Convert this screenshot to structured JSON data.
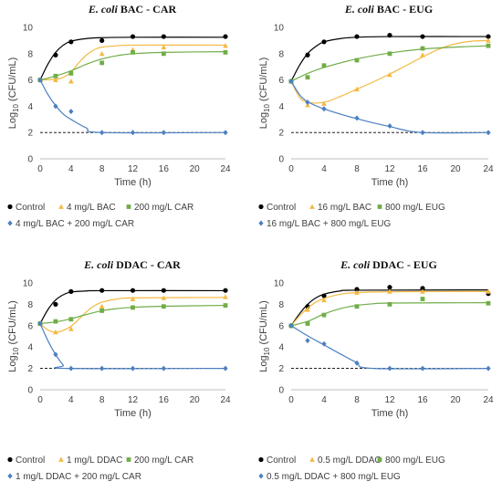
{
  "chart_data": [
    {
      "type": "line",
      "title_italic": "E. coli",
      "title_rest": " BAC - CAR",
      "xlabel": "Time (h)",
      "ylabel_prefix": "Log",
      "ylabel_sub": "10",
      "ylabel_suffix": " (CFU/mL)",
      "xlim": [
        0,
        24
      ],
      "ylim": [
        0,
        10
      ],
      "xticks": [
        0,
        4,
        8,
        12,
        16,
        20,
        24
      ],
      "yticks": [
        0,
        2,
        4,
        6,
        8,
        10
      ],
      "detection_limit": 2,
      "grid": false,
      "legend_position": "bottom",
      "series": [
        {
          "name": "Control",
          "color": "#000000",
          "marker": "circle",
          "x": [
            0,
            2,
            4,
            8,
            12,
            16,
            24
          ],
          "y": [
            6.0,
            7.9,
            8.9,
            9.0,
            9.3,
            9.3,
            9.3
          ],
          "fit": [
            [
              0,
              6.0
            ],
            [
              1,
              7.2
            ],
            [
              2,
              8.1
            ],
            [
              3,
              8.65
            ],
            [
              4,
              8.95
            ],
            [
              6,
              9.15
            ],
            [
              8,
              9.22
            ],
            [
              12,
              9.25
            ],
            [
              24,
              9.25
            ]
          ]
        },
        {
          "name": "4 mg/L BAC",
          "color": "#f4b942",
          "marker": "triangle",
          "x": [
            0,
            2,
            4,
            8,
            12,
            16,
            24
          ],
          "y": [
            6.0,
            6.0,
            5.9,
            8.0,
            8.3,
            8.5,
            8.6
          ],
          "fit": [
            [
              0,
              6.0
            ],
            [
              2,
              6.05
            ],
            [
              3,
              6.2
            ],
            [
              4,
              6.6
            ],
            [
              5,
              7.3
            ],
            [
              6,
              7.9
            ],
            [
              7,
              8.3
            ],
            [
              8,
              8.5
            ],
            [
              10,
              8.6
            ],
            [
              12,
              8.65
            ],
            [
              24,
              8.65
            ]
          ]
        },
        {
          "name": "200 mg/L CAR",
          "color": "#70ad47",
          "marker": "square",
          "x": [
            0,
            2,
            4,
            8,
            12,
            16,
            24
          ],
          "y": [
            6.0,
            6.3,
            6.5,
            7.3,
            8.1,
            8.0,
            8.1
          ],
          "fit": [
            [
              0,
              6.0
            ],
            [
              2,
              6.3
            ],
            [
              4,
              6.7
            ],
            [
              6,
              7.2
            ],
            [
              8,
              7.6
            ],
            [
              10,
              7.85
            ],
            [
              12,
              8.0
            ],
            [
              16,
              8.1
            ],
            [
              24,
              8.15
            ]
          ]
        },
        {
          "name": "4 mg/L BAC + 200 mg/L CAR",
          "color": "#4a7fc1",
          "marker": "diamond",
          "x": [
            0,
            2,
            4,
            8,
            12,
            16,
            24
          ],
          "y": [
            6.0,
            4.0,
            3.6,
            2.0,
            2.0,
            2.0,
            2.0
          ],
          "fit": [
            [
              0,
              6.0
            ],
            [
              1,
              4.9
            ],
            [
              2,
              4.05
            ],
            [
              3,
              3.4
            ],
            [
              4,
              3.0
            ],
            [
              6,
              2.35
            ],
            [
              8,
              2.0
            ],
            [
              24,
              2.0
            ]
          ]
        }
      ]
    },
    {
      "type": "line",
      "title_italic": "E. coli",
      "title_rest": " BAC - EUG",
      "xlabel": "Time (h)",
      "ylabel_prefix": "Log",
      "ylabel_sub": "10",
      "ylabel_suffix": " (CFU/mL)",
      "xlim": [
        0,
        24
      ],
      "ylim": [
        0,
        10
      ],
      "xticks": [
        0,
        4,
        8,
        12,
        16,
        20,
        24
      ],
      "yticks": [
        0,
        2,
        4,
        6,
        8,
        10
      ],
      "detection_limit": 2,
      "grid": false,
      "legend_position": "bottom",
      "series": [
        {
          "name": "Control",
          "color": "#000000",
          "marker": "circle",
          "x": [
            0,
            2,
            4,
            8,
            12,
            16,
            24
          ],
          "y": [
            5.9,
            7.9,
            8.9,
            9.3,
            9.4,
            9.3,
            9.3
          ],
          "fit": [
            [
              0,
              5.9
            ],
            [
              1,
              7.1
            ],
            [
              2,
              8.0
            ],
            [
              3,
              8.55
            ],
            [
              4,
              8.9
            ],
            [
              6,
              9.15
            ],
            [
              8,
              9.25
            ],
            [
              12,
              9.3
            ],
            [
              24,
              9.3
            ]
          ]
        },
        {
          "name": "16 mg/L BAC",
          "color": "#f4b942",
          "marker": "triangle",
          "x": [
            0,
            2,
            4,
            8,
            12,
            16,
            24
          ],
          "y": [
            5.9,
            4.1,
            4.2,
            5.3,
            6.4,
            7.9,
            9.0
          ],
          "fit": [
            [
              0,
              5.9
            ],
            [
              1,
              4.7
            ],
            [
              2,
              4.3
            ],
            [
              4,
              4.3
            ],
            [
              6,
              4.75
            ],
            [
              8,
              5.3
            ],
            [
              10,
              5.85
            ],
            [
              12,
              6.45
            ],
            [
              14,
              7.1
            ],
            [
              16,
              7.75
            ],
            [
              18,
              8.35
            ],
            [
              20,
              8.75
            ],
            [
              22,
              8.95
            ],
            [
              24,
              9.0
            ]
          ]
        },
        {
          "name": "800 mg/L EUG",
          "color": "#70ad47",
          "marker": "square",
          "x": [
            0,
            2,
            4,
            8,
            12,
            16,
            24
          ],
          "y": [
            5.9,
            6.2,
            7.1,
            7.5,
            8.0,
            8.4,
            8.6
          ],
          "fit": [
            [
              0,
              5.9
            ],
            [
              2,
              6.5
            ],
            [
              4,
              6.95
            ],
            [
              8,
              7.6
            ],
            [
              12,
              8.05
            ],
            [
              16,
              8.35
            ],
            [
              20,
              8.5
            ],
            [
              24,
              8.6
            ]
          ]
        },
        {
          "name": "16 mg/L BAC + 800 mg/L EUG",
          "color": "#4a7fc1",
          "marker": "diamond",
          "x": [
            0,
            2,
            4,
            8,
            12,
            16,
            24
          ],
          "y": [
            5.9,
            4.3,
            3.8,
            3.1,
            2.5,
            2.0,
            2.0
          ],
          "fit": [
            [
              0,
              5.9
            ],
            [
              1,
              4.9
            ],
            [
              2,
              4.35
            ],
            [
              4,
              3.8
            ],
            [
              8,
              3.05
            ],
            [
              12,
              2.45
            ],
            [
              16,
              2.0
            ],
            [
              24,
              2.0
            ]
          ]
        }
      ]
    },
    {
      "type": "line",
      "title_italic": "E. coli",
      "title_rest": " DDAC - CAR",
      "xlabel": "Time (h)",
      "ylabel_prefix": "Log",
      "ylabel_sub": "10",
      "ylabel_suffix": " (CFU/mL)",
      "xlim": [
        0,
        24
      ],
      "ylim": [
        0,
        10
      ],
      "xticks": [
        0,
        4,
        8,
        12,
        16,
        20,
        24
      ],
      "yticks": [
        0,
        2,
        4,
        6,
        8,
        10
      ],
      "detection_limit": 2,
      "grid": false,
      "legend_position": "bottom",
      "series": [
        {
          "name": "Control",
          "color": "#000000",
          "marker": "circle",
          "x": [
            0,
            2,
            4,
            8,
            12,
            16,
            24
          ],
          "y": [
            6.2,
            8.0,
            9.2,
            9.3,
            9.3,
            9.3,
            9.3
          ],
          "fit": [
            [
              0,
              6.2
            ],
            [
              1,
              7.5
            ],
            [
              2,
              8.4
            ],
            [
              3,
              8.9
            ],
            [
              4,
              9.15
            ],
            [
              6,
              9.25
            ],
            [
              8,
              9.28
            ],
            [
              24,
              9.28
            ]
          ]
        },
        {
          "name": "1 mg/L DDAC",
          "color": "#f4b942",
          "marker": "triangle",
          "x": [
            0,
            2,
            4,
            8,
            12,
            16,
            24
          ],
          "y": [
            6.2,
            5.4,
            5.7,
            7.8,
            8.5,
            8.6,
            8.7
          ],
          "fit": [
            [
              0,
              6.2
            ],
            [
              1,
              5.6
            ],
            [
              2,
              5.4
            ],
            [
              3,
              5.55
            ],
            [
              4,
              5.95
            ],
            [
              5,
              6.6
            ],
            [
              6,
              7.3
            ],
            [
              7,
              7.85
            ],
            [
              8,
              8.2
            ],
            [
              10,
              8.5
            ],
            [
              12,
              8.6
            ],
            [
              24,
              8.65
            ]
          ]
        },
        {
          "name": "200 mg/L CAR",
          "color": "#70ad47",
          "marker": "square",
          "x": [
            0,
            2,
            4,
            8,
            12,
            16,
            24
          ],
          "y": [
            6.2,
            6.4,
            6.6,
            7.4,
            7.7,
            7.8,
            7.9
          ],
          "fit": [
            [
              0,
              6.2
            ],
            [
              2,
              6.35
            ],
            [
              4,
              6.65
            ],
            [
              6,
              7.05
            ],
            [
              8,
              7.4
            ],
            [
              10,
              7.6
            ],
            [
              12,
              7.72
            ],
            [
              16,
              7.82
            ],
            [
              24,
              7.9
            ]
          ]
        },
        {
          "name": "1 mg/L DDAC + 200 mg/L CAR",
          "color": "#4a7fc1",
          "marker": "diamond",
          "x": [
            0,
            2,
            4,
            8,
            12,
            16,
            24
          ],
          "y": [
            6.2,
            3.3,
            2.0,
            2.0,
            2.0,
            2.0,
            2.0
          ],
          "fit": [
            [
              0,
              6.2
            ],
            [
              1,
              4.6
            ],
            [
              2,
              3.3
            ],
            [
              3,
              2.3
            ],
            [
              3.5,
              2.0
            ],
            [
              24,
              2.0
            ]
          ]
        }
      ]
    },
    {
      "type": "line",
      "title_italic": "E. coli",
      "title_rest": " DDAC - EUG",
      "xlabel": "Time (h)",
      "ylabel_prefix": "Log",
      "ylabel_sub": "10",
      "ylabel_suffix": " (CFU/mL)",
      "xlim": [
        0,
        24
      ],
      "ylim": [
        0,
        10
      ],
      "xticks": [
        0,
        4,
        8,
        12,
        16,
        20,
        24
      ],
      "yticks": [
        0,
        2,
        4,
        6,
        8,
        10
      ],
      "detection_limit": 2,
      "grid": false,
      "legend_position": "bottom",
      "series": [
        {
          "name": "Control",
          "color": "#000000",
          "marker": "circle",
          "x": [
            0,
            2,
            4,
            8,
            12,
            16,
            24
          ],
          "y": [
            6.0,
            7.8,
            8.8,
            9.4,
            9.6,
            9.5,
            9.0
          ],
          "fit": [
            [
              0,
              6.0
            ],
            [
              1,
              7.1
            ],
            [
              2,
              8.0
            ],
            [
              3,
              8.6
            ],
            [
              4,
              8.95
            ],
            [
              6,
              9.25
            ],
            [
              8,
              9.32
            ],
            [
              24,
              9.35
            ]
          ]
        },
        {
          "name": "0.5 mg/L DDAC",
          "color": "#f4b942",
          "marker": "triangle",
          "x": [
            0,
            2,
            4,
            8,
            12,
            16,
            24
          ],
          "y": [
            6.0,
            7.5,
            8.4,
            9.1,
            9.2,
            9.2,
            9.2
          ],
          "fit": [
            [
              0,
              6.0
            ],
            [
              1,
              6.9
            ],
            [
              2,
              7.65
            ],
            [
              3,
              8.2
            ],
            [
              4,
              8.55
            ],
            [
              6,
              8.95
            ],
            [
              8,
              9.1
            ],
            [
              12,
              9.18
            ],
            [
              24,
              9.2
            ]
          ]
        },
        {
          "name": "800 mg/L EUG",
          "color": "#70ad47",
          "marker": "square",
          "x": [
            0,
            2,
            4,
            8,
            12,
            16,
            24
          ],
          "y": [
            6.0,
            6.2,
            7.0,
            7.8,
            8.0,
            8.5,
            8.1
          ],
          "fit": [
            [
              0,
              6.0
            ],
            [
              2,
              6.4
            ],
            [
              4,
              7.1
            ],
            [
              6,
              7.6
            ],
            [
              8,
              7.9
            ],
            [
              10,
              8.05
            ],
            [
              12,
              8.12
            ],
            [
              24,
              8.15
            ]
          ]
        },
        {
          "name": "0.5 mg/L DDAC + 800 mg/L EUG",
          "color": "#4a7fc1",
          "marker": "diamond",
          "x": [
            0,
            2,
            4,
            8,
            12,
            16,
            24
          ],
          "y": [
            6.0,
            4.6,
            4.3,
            2.5,
            2.0,
            2.0,
            2.0
          ],
          "fit": [
            [
              0,
              6.0
            ],
            [
              2,
              5.05
            ],
            [
              4,
              4.2
            ],
            [
              6,
              3.35
            ],
            [
              8,
              2.55
            ],
            [
              10,
              2.0
            ],
            [
              24,
              2.0
            ]
          ]
        }
      ]
    }
  ]
}
